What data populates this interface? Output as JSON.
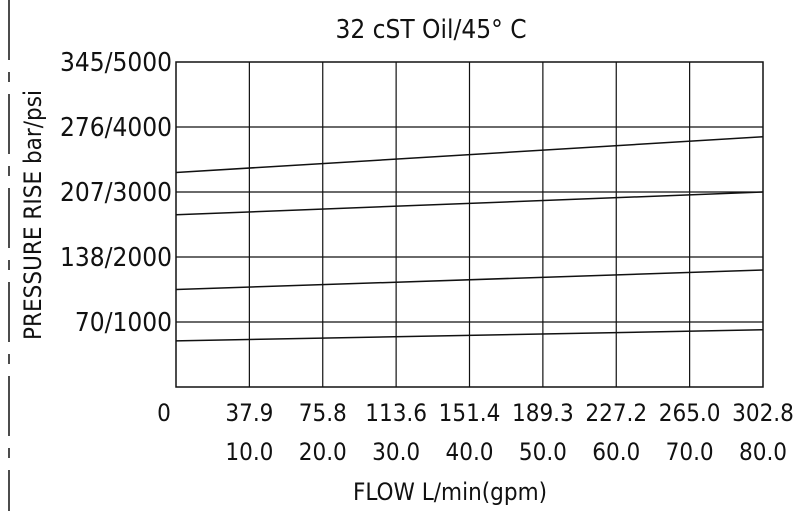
{
  "chart_data": {
    "type": "line",
    "title": "32 cST Oil/45° C",
    "xlabel": "FLOW L/min(gpm)",
    "ylabel": "PRESSURE RISE bar/psi",
    "x_tick_labels_lpm": [
      "0",
      "37.9",
      "75.8",
      "113.6",
      "151.4",
      "189.3",
      "227.2",
      "265.0",
      "302.8"
    ],
    "x_tick_labels_gpm": [
      "",
      "10.0",
      "20.0",
      "30.0",
      "40.0",
      "50.0",
      "60.0",
      "70.0",
      "80.0"
    ],
    "y_tick_labels": [
      "70/1000",
      "138/2000",
      "207/3000",
      "276/4000",
      "345/5000"
    ],
    "y_ticks_psi": [
      1000,
      2000,
      3000,
      4000,
      5000
    ],
    "xlim_gpm": [
      0,
      80
    ],
    "ylim_psi": [
      0,
      5000
    ],
    "grid": true,
    "series": [
      {
        "x": [
          0,
          80
        ],
        "y": [
          3300,
          3850
        ]
      },
      {
        "x": [
          0,
          80
        ],
        "y": [
          2650,
          3000
        ]
      },
      {
        "x": [
          0,
          80
        ],
        "y": [
          1500,
          1800
        ]
      },
      {
        "x": [
          0,
          80
        ],
        "y": [
          710,
          880
        ]
      }
    ]
  }
}
